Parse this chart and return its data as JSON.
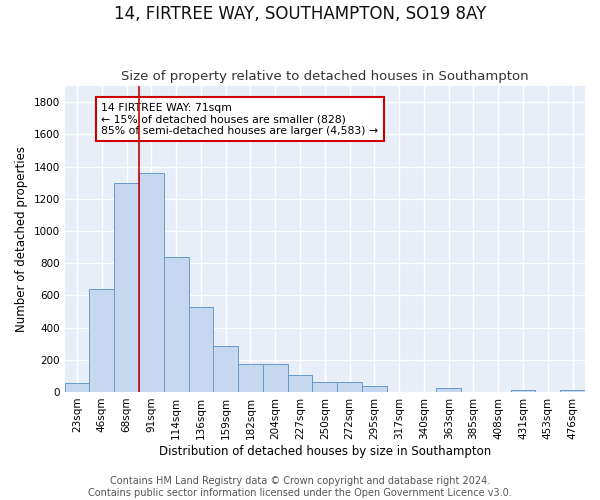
{
  "title": "14, FIRTREE WAY, SOUTHAMPTON, SO19 8AY",
  "subtitle": "Size of property relative to detached houses in Southampton",
  "xlabel": "Distribution of detached houses by size in Southampton",
  "ylabel": "Number of detached properties",
  "footer_line1": "Contains HM Land Registry data © Crown copyright and database right 2024.",
  "footer_line2": "Contains public sector information licensed under the Open Government Licence v3.0.",
  "categories": [
    "23sqm",
    "46sqm",
    "68sqm",
    "91sqm",
    "114sqm",
    "136sqm",
    "159sqm",
    "182sqm",
    "204sqm",
    "227sqm",
    "250sqm",
    "272sqm",
    "295sqm",
    "317sqm",
    "340sqm",
    "363sqm",
    "385sqm",
    "408sqm",
    "431sqm",
    "453sqm",
    "476sqm"
  ],
  "values": [
    57,
    640,
    1300,
    1360,
    840,
    525,
    283,
    175,
    175,
    108,
    63,
    63,
    35,
    0,
    0,
    27,
    0,
    0,
    15,
    0,
    15
  ],
  "bar_color": "#c5d8f0",
  "bar_edge_color": "#6699cc",
  "background_color": "#e8eef8",
  "grid_color": "#ffffff",
  "vline_x": 2.5,
  "vline_color": "#cc0000",
  "annotation_text": "14 FIRTREE WAY: 71sqm\n← 15% of detached houses are smaller (828)\n85% of semi-detached houses are larger (4,583) →",
  "annotation_box_color": "#cc0000",
  "ylim": [
    0,
    1900
  ],
  "yticks": [
    0,
    200,
    400,
    600,
    800,
    1000,
    1200,
    1400,
    1600,
    1800
  ],
  "title_fontsize": 12,
  "subtitle_fontsize": 9.5,
  "axis_fontsize": 8.5,
  "tick_fontsize": 7.5,
  "footer_fontsize": 7.0,
  "fig_bg": "#ffffff"
}
